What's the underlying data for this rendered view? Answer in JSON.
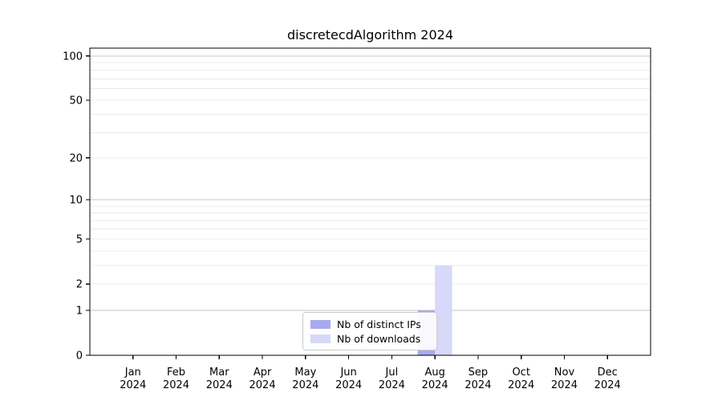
{
  "chart_data": {
    "type": "bar",
    "title": "discretecdAlgorithm 2024",
    "categories": [
      "Jan 2024",
      "Feb 2024",
      "Mar 2024",
      "Apr 2024",
      "May 2024",
      "Jun 2024",
      "Jul 2024",
      "Aug 2024",
      "Sep 2024",
      "Oct 2024",
      "Nov 2024",
      "Dec 2024"
    ],
    "series": [
      {
        "name": "Nb of distinct IPs",
        "color": "#a9a9f0",
        "values": [
          0,
          0,
          0,
          0,
          0,
          0,
          0,
          1,
          0,
          0,
          0,
          0
        ]
      },
      {
        "name": "Nb of downloads",
        "color": "#d8d8f8",
        "values": [
          0,
          0,
          0,
          0,
          0,
          0,
          0,
          3,
          0,
          0,
          0,
          0
        ]
      }
    ],
    "xlabel": "",
    "ylabel": "",
    "y_scale": "log1p",
    "ylim": [
      0,
      113
    ],
    "y_ticks": [
      0,
      1,
      2,
      5,
      10,
      20,
      50,
      100
    ],
    "y_major_gridlines": [
      1,
      10,
      100
    ],
    "y_minor_gridlines": [
      2,
      3,
      4,
      5,
      6,
      7,
      8,
      9,
      20,
      30,
      40,
      50,
      60,
      70,
      80,
      90
    ],
    "grid": "horizontal",
    "legend_position": "bottom-center"
  },
  "colors": {
    "axis": "#000000",
    "tick_label": "#000000",
    "major_grid": "#c6c6c6",
    "minor_grid": "#ececec",
    "legend_border": "#cccccc",
    "background": "#ffffff"
  }
}
